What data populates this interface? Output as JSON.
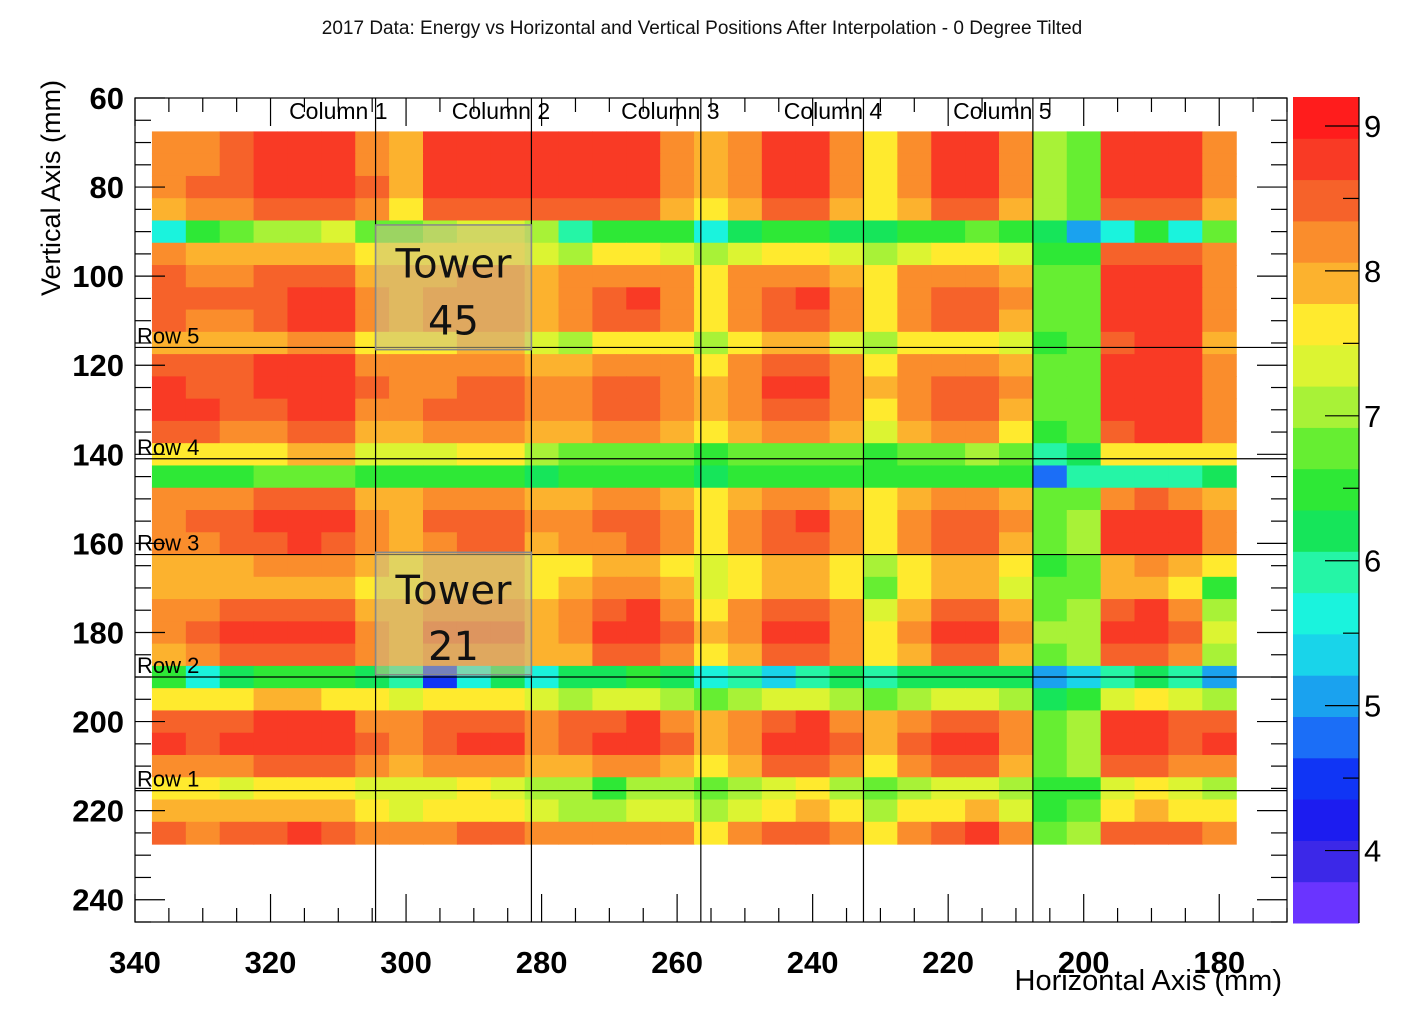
{
  "chart_data": {
    "type": "heatmap",
    "title": "2017 Data: Energy vs Horizontal and Vertical Positions After Interpolation - 0 Degree Tilted",
    "xlabel": "Horizontal Axis (mm)",
    "ylabel": "Vertical Axis (mm)",
    "xlim": [
      340,
      170
    ],
    "ylim": [
      60,
      245
    ],
    "zlim": [
      3.5,
      9.2
    ],
    "x_reversed": true,
    "y_reversed": true,
    "x_ticks": [
      340,
      320,
      300,
      280,
      260,
      240,
      220,
      200,
      180
    ],
    "y_ticks": [
      60,
      80,
      100,
      120,
      140,
      160,
      180,
      200,
      220,
      240
    ],
    "z_ticks": [
      4,
      5,
      6,
      7,
      8,
      9
    ],
    "grid": false,
    "colorbar": "right",
    "palette": [
      "#6a34ff",
      "#3c28e8",
      "#1c1cf0",
      "#1035f5",
      "#1b6ef7",
      "#1aa2ef",
      "#19d4ea",
      "#1af3dd",
      "#25f5a6",
      "#16e55a",
      "#2ee836",
      "#66ee32",
      "#a8f237",
      "#dcf432",
      "#ffea2e",
      "#fcb22e",
      "#fa8d2c",
      "#f6622a",
      "#f93a25",
      "#ff1c1c"
    ],
    "x_bins": [
      335,
      330,
      325,
      320,
      315,
      310,
      305,
      300,
      295,
      290,
      285,
      280,
      275,
      270,
      265,
      260,
      255,
      250,
      245,
      240,
      235,
      230,
      225,
      220,
      215,
      210,
      205,
      200,
      195,
      190,
      185,
      180
    ],
    "y_bins": [
      70,
      75,
      80,
      85,
      90,
      95,
      100,
      105,
      110,
      115,
      120,
      125,
      130,
      135,
      140,
      145,
      150,
      155,
      160,
      165,
      170,
      175,
      180,
      185,
      190,
      195,
      200,
      205,
      210,
      215,
      220,
      225
    ],
    "energy": [
      [
        8.1,
        8.3,
        8.5,
        8.9,
        8.9,
        8.9,
        8.3,
        7.8,
        8.8,
        8.9,
        8.9,
        8.8,
        8.9,
        8.9,
        8.8,
        8.2,
        7.8,
        8.3,
        8.9,
        8.8,
        8.3,
        7.7,
        8.3,
        8.8,
        8.8,
        8.3,
        7.2,
        6.8,
        8.8,
        8.9,
        8.9,
        8.3
      ],
      [
        8.1,
        8.3,
        8.6,
        8.9,
        8.9,
        8.9,
        8.3,
        7.8,
        8.8,
        8.9,
        8.9,
        8.8,
        8.9,
        8.9,
        8.8,
        8.2,
        7.8,
        8.3,
        8.9,
        8.8,
        8.3,
        7.7,
        8.3,
        8.8,
        8.8,
        8.3,
        7.2,
        6.8,
        8.8,
        8.9,
        8.9,
        8.3
      ],
      [
        8.2,
        8.4,
        8.6,
        8.9,
        8.9,
        8.9,
        8.4,
        7.8,
        8.8,
        8.9,
        8.9,
        8.8,
        8.9,
        8.9,
        8.8,
        8.3,
        7.8,
        8.3,
        8.9,
        8.8,
        8.3,
        7.7,
        8.3,
        8.8,
        8.8,
        8.3,
        7.2,
        6.9,
        8.8,
        8.9,
        8.9,
        8.3
      ],
      [
        8.0,
        8.2,
        8.3,
        8.5,
        8.5,
        8.6,
        8.1,
        7.6,
        8.5,
        8.6,
        8.6,
        8.5,
        8.5,
        8.5,
        8.5,
        8.0,
        7.5,
        8.0,
        8.5,
        8.5,
        8.0,
        7.5,
        8.0,
        8.5,
        8.5,
        8.0,
        7.0,
        6.7,
        8.5,
        8.6,
        8.6,
        8.0
      ],
      [
        5.5,
        6.4,
        6.9,
        7.1,
        7.2,
        7.3,
        6.9,
        6.7,
        7.2,
        7.3,
        7.3,
        7.0,
        5.9,
        6.5,
        6.6,
        6.4,
        5.6,
        6.1,
        6.5,
        6.5,
        6.3,
        6.3,
        6.5,
        6.6,
        6.8,
        6.6,
        6.2,
        5.0,
        5.7,
        6.5,
        5.6,
        6.9
      ],
      [
        8.1,
        8.0,
        7.9,
        7.9,
        8.0,
        8.0,
        7.6,
        7.5,
        7.6,
        7.6,
        7.7,
        7.4,
        7.2,
        7.5,
        7.6,
        7.4,
        7.1,
        7.4,
        7.6,
        7.6,
        7.3,
        7.1,
        7.4,
        7.6,
        7.6,
        7.3,
        6.5,
        6.6,
        8.5,
        8.6,
        8.6,
        8.2
      ],
      [
        8.4,
        8.3,
        8.3,
        8.4,
        8.5,
        8.5,
        8.0,
        7.9,
        8.0,
        8.1,
        8.1,
        7.8,
        8.1,
        8.3,
        8.3,
        8.1,
        7.6,
        8.1,
        8.3,
        8.3,
        8.0,
        7.6,
        8.1,
        8.3,
        8.3,
        8.0,
        6.8,
        6.9,
        8.8,
        8.9,
        8.9,
        8.3
      ],
      [
        8.5,
        8.4,
        8.4,
        8.6,
        8.8,
        8.8,
        8.2,
        7.9,
        8.1,
        8.2,
        8.2,
        7.9,
        8.2,
        8.6,
        8.7,
        8.3,
        7.7,
        8.2,
        8.6,
        8.7,
        8.2,
        7.7,
        8.2,
        8.5,
        8.6,
        8.1,
        6.8,
        6.9,
        8.9,
        8.9,
        8.9,
        8.3
      ],
      [
        8.4,
        8.3,
        8.3,
        8.6,
        8.9,
        8.9,
        8.2,
        7.9,
        8.1,
        8.2,
        8.2,
        7.9,
        8.1,
        8.4,
        8.4,
        8.2,
        7.6,
        8.1,
        8.4,
        8.5,
        8.1,
        7.6,
        8.1,
        8.4,
        8.5,
        8.0,
        6.7,
        6.8,
        8.9,
        8.9,
        8.9,
        8.3
      ],
      [
        7.9,
        7.8,
        7.8,
        8.0,
        8.1,
        8.1,
        7.7,
        7.5,
        7.7,
        7.8,
        7.8,
        7.4,
        7.2,
        7.6,
        7.7,
        7.5,
        7.1,
        7.5,
        7.8,
        7.8,
        7.4,
        7.0,
        7.5,
        7.7,
        7.7,
        7.3,
        6.6,
        6.7,
        8.6,
        8.7,
        8.7,
        8.0
      ],
      [
        8.6,
        8.5,
        8.5,
        8.7,
        8.8,
        8.8,
        8.3,
        8.1,
        8.2,
        8.3,
        8.3,
        8.0,
        7.9,
        8.2,
        8.3,
        8.1,
        7.6,
        8.1,
        8.4,
        8.4,
        8.1,
        7.7,
        8.2,
        8.3,
        8.3,
        8.0,
        6.8,
        6.9,
        8.9,
        8.9,
        8.9,
        8.3
      ],
      [
        8.8,
        8.6,
        8.6,
        8.8,
        8.9,
        8.9,
        8.4,
        8.1,
        8.3,
        8.5,
        8.4,
        8.1,
        8.1,
        8.4,
        8.5,
        8.2,
        7.8,
        8.2,
        8.7,
        8.8,
        8.3,
        7.8,
        8.2,
        8.6,
        8.6,
        8.1,
        6.8,
        6.9,
        8.9,
        8.9,
        8.9,
        8.3
      ],
      [
        8.9,
        8.8,
        8.4,
        8.6,
        8.9,
        8.9,
        8.2,
        8.1,
        8.4,
        8.6,
        8.5,
        8.1,
        8.1,
        8.5,
        8.6,
        8.2,
        7.8,
        8.2,
        8.4,
        8.5,
        8.1,
        7.7,
        8.2,
        8.5,
        8.5,
        8.0,
        6.8,
        6.9,
        8.9,
        8.9,
        8.9,
        8.3
      ],
      [
        8.6,
        8.5,
        8.2,
        8.3,
        8.5,
        8.5,
        8.0,
        7.9,
        8.1,
        8.2,
        8.2,
        7.8,
        7.9,
        8.1,
        8.1,
        7.9,
        7.5,
        7.9,
        8.1,
        8.1,
        7.8,
        7.4,
        7.9,
        8.1,
        8.1,
        7.7,
        6.6,
        6.7,
        8.6,
        8.7,
        8.7,
        8.2
      ],
      [
        7.6,
        7.6,
        7.7,
        7.7,
        7.8,
        7.8,
        7.4,
        7.3,
        7.4,
        7.5,
        7.5,
        7.1,
        6.9,
        6.8,
        6.8,
        6.7,
        6.5,
        6.7,
        6.8,
        6.8,
        6.7,
        6.6,
        6.8,
        6.9,
        7.0,
        6.7,
        5.9,
        6.1,
        7.6,
        7.7,
        7.7,
        7.5
      ],
      [
        6.6,
        6.6,
        6.6,
        6.7,
        6.7,
        6.7,
        6.5,
        6.4,
        6.5,
        6.6,
        6.5,
        6.1,
        6.4,
        6.4,
        6.5,
        6.4,
        6.3,
        6.4,
        6.5,
        6.5,
        6.4,
        6.4,
        6.5,
        6.5,
        6.6,
        6.4,
        4.7,
        5.8,
        5.9,
        6.0,
        6.0,
        6.3
      ],
      [
        8.1,
        8.2,
        8.3,
        8.5,
        8.6,
        8.5,
        8.0,
        7.8,
        8.1,
        8.2,
        8.2,
        7.8,
        7.9,
        8.1,
        8.2,
        7.9,
        7.5,
        7.9,
        8.1,
        8.2,
        7.9,
        7.5,
        7.9,
        8.1,
        8.1,
        7.8,
        6.7,
        6.9,
        8.3,
        8.4,
        8.3,
        8.0
      ],
      [
        8.3,
        8.4,
        8.5,
        8.8,
        8.9,
        8.8,
        8.2,
        7.9,
        8.4,
        8.6,
        8.6,
        8.1,
        8.2,
        8.4,
        8.6,
        8.2,
        7.7,
        8.2,
        8.6,
        8.7,
        8.2,
        7.7,
        8.2,
        8.5,
        8.6,
        8.1,
        6.8,
        7.0,
        8.8,
        8.9,
        8.8,
        8.2
      ],
      [
        8.2,
        8.3,
        8.4,
        8.6,
        8.7,
        8.6,
        8.1,
        7.9,
        8.3,
        8.5,
        8.5,
        8.0,
        8.1,
        8.3,
        8.4,
        8.1,
        7.6,
        8.1,
        8.5,
        8.6,
        8.1,
        7.6,
        8.1,
        8.4,
        8.5,
        8.0,
        6.7,
        7.0,
        8.7,
        8.8,
        8.7,
        8.1
      ],
      [
        7.9,
        7.9,
        8.0,
        8.1,
        8.2,
        8.1,
        7.8,
        7.6,
        7.9,
        8.0,
        8.0,
        7.6,
        7.6,
        7.8,
        7.9,
        7.6,
        7.3,
        7.6,
        7.9,
        7.9,
        7.6,
        7.2,
        7.6,
        7.8,
        7.8,
        7.5,
        6.6,
        6.8,
        8.0,
        8.1,
        8.0,
        7.7
      ],
      [
        7.8,
        7.9,
        7.9,
        8.0,
        8.0,
        7.9,
        7.7,
        7.6,
        7.8,
        7.9,
        7.8,
        7.5,
        7.8,
        8.1,
        8.2,
        7.9,
        7.4,
        7.6,
        7.8,
        7.9,
        7.6,
        6.8,
        7.6,
        7.8,
        7.8,
        7.4,
        6.7,
        6.9,
        7.8,
        7.9,
        7.6,
        6.6
      ],
      [
        8.1,
        8.3,
        8.4,
        8.5,
        8.5,
        8.4,
        8.0,
        7.9,
        8.2,
        8.3,
        8.2,
        7.9,
        8.2,
        8.6,
        8.7,
        8.3,
        7.7,
        8.1,
        8.4,
        8.5,
        8.1,
        7.4,
        8.0,
        8.4,
        8.5,
        8.0,
        6.9,
        7.1,
        8.6,
        8.7,
        8.3,
        7.1
      ],
      [
        8.2,
        8.5,
        8.7,
        8.9,
        8.9,
        8.8,
        8.3,
        8.0,
        8.4,
        8.5,
        8.4,
        8.0,
        8.3,
        8.9,
        8.9,
        8.5,
        7.8,
        8.3,
        8.8,
        8.9,
        8.3,
        7.7,
        8.3,
        8.8,
        8.9,
        8.3,
        7.0,
        7.2,
        8.9,
        8.9,
        8.6,
        7.4
      ],
      [
        8.0,
        8.2,
        8.4,
        8.6,
        8.6,
        8.5,
        8.1,
        7.8,
        8.2,
        8.3,
        8.2,
        7.8,
        8.0,
        8.4,
        8.5,
        8.1,
        7.6,
        8.0,
        8.4,
        8.5,
        8.1,
        7.5,
        8.0,
        8.4,
        8.5,
        8.0,
        6.8,
        7.0,
        8.5,
        8.6,
        8.3,
        7.2
      ],
      [
        6.5,
        5.5,
        6.3,
        6.6,
        6.6,
        6.5,
        6.2,
        6.0,
        4.6,
        5.7,
        6.1,
        5.6,
        6.1,
        6.3,
        6.4,
        6.1,
        5.7,
        5.9,
        5.4,
        6.0,
        6.1,
        5.9,
        6.1,
        6.3,
        6.3,
        6.1,
        5.2,
        5.4,
        6.0,
        6.1,
        6.0,
        5.2
      ],
      [
        7.6,
        7.7,
        7.7,
        7.8,
        7.8,
        7.7,
        7.5,
        7.3,
        7.5,
        7.6,
        7.6,
        7.3,
        7.2,
        7.3,
        7.3,
        7.1,
        6.9,
        7.1,
        7.3,
        7.3,
        7.1,
        6.8,
        7.1,
        7.3,
        7.3,
        7.0,
        6.3,
        6.5,
        7.4,
        7.5,
        7.4,
        7.2
      ],
      [
        8.6,
        8.4,
        8.6,
        8.8,
        8.8,
        8.7,
        8.3,
        8.1,
        8.5,
        8.6,
        8.6,
        8.2,
        8.4,
        8.6,
        8.7,
        8.3,
        7.8,
        8.2,
        8.6,
        8.7,
        8.3,
        7.8,
        8.3,
        8.6,
        8.6,
        8.2,
        6.9,
        7.1,
        8.8,
        8.9,
        8.6,
        8.4
      ],
      [
        8.8,
        8.4,
        8.7,
        8.9,
        8.9,
        8.9,
        8.4,
        8.1,
        8.6,
        8.7,
        8.7,
        8.2,
        8.6,
        8.9,
        8.9,
        8.5,
        7.8,
        8.3,
        8.9,
        8.9,
        8.4,
        7.8,
        8.4,
        8.8,
        8.9,
        8.3,
        6.9,
        7.1,
        8.9,
        8.9,
        8.6,
        8.9
      ],
      [
        8.3,
        8.1,
        8.3,
        8.5,
        8.5,
        8.4,
        8.1,
        7.9,
        8.2,
        8.3,
        8.3,
        7.9,
        8.0,
        8.2,
        8.3,
        8.0,
        7.6,
        8.0,
        8.4,
        8.5,
        8.1,
        7.6,
        8.1,
        8.4,
        8.5,
        8.0,
        6.8,
        7.0,
        8.4,
        8.5,
        8.3,
        8.1
      ],
      [
        7.5,
        7.5,
        7.4,
        7.6,
        7.7,
        7.6,
        7.4,
        7.3,
        7.4,
        7.5,
        7.4,
        7.2,
        7.0,
        6.5,
        7.0,
        7.1,
        6.9,
        7.1,
        7.4,
        7.5,
        7.2,
        6.9,
        7.2,
        7.4,
        7.4,
        7.1,
        6.4,
        6.6,
        7.4,
        7.5,
        7.4,
        7.2
      ],
      [
        7.8,
        7.8,
        7.8,
        7.9,
        7.9,
        7.8,
        7.6,
        7.4,
        7.6,
        7.7,
        7.6,
        7.3,
        7.2,
        7.1,
        7.3,
        7.3,
        7.1,
        7.4,
        7.7,
        7.8,
        7.5,
        7.2,
        7.5,
        7.7,
        7.8,
        7.4,
        6.5,
        6.8,
        7.7,
        7.8,
        7.7,
        7.5
      ],
      [
        8.5,
        8.3,
        8.4,
        8.6,
        8.7,
        8.6,
        8.3,
        8.1,
        8.3,
        8.5,
        8.4,
        8.1,
        8.1,
        8.1,
        8.2,
        8.1,
        7.7,
        8.1,
        8.5,
        8.6,
        8.2,
        7.7,
        8.2,
        8.6,
        8.7,
        8.1,
        6.9,
        7.1,
        8.5,
        8.6,
        8.5,
        8.2
      ]
    ],
    "column_lines_x": [
      304.5,
      281.5,
      256.5,
      232.5,
      207.5
    ],
    "column_labels": [
      {
        "text": "Column 1",
        "x": 310
      },
      {
        "text": "Column 2",
        "x": 286
      },
      {
        "text": "Column 3",
        "x": 261
      },
      {
        "text": "Column 4",
        "x": 237
      },
      {
        "text": "Column 5",
        "x": 212
      }
    ],
    "row_lines_y": [
      116,
      141,
      162.5,
      190,
      215.5
    ],
    "row_labels": [
      {
        "text": "Row 5",
        "y": 116
      },
      {
        "text": "Row 4",
        "y": 141
      },
      {
        "text": "Row 3",
        "y": 162.5
      },
      {
        "text": "Row 2",
        "y": 190
      },
      {
        "text": "Row 1",
        "y": 215.5
      }
    ],
    "annotations": [
      {
        "line1": "Tower",
        "line2": "45",
        "x0": 304.5,
        "x1": 281.5,
        "y0": 88.5,
        "y1": 116.5
      },
      {
        "line1": "Tower",
        "line2": "21",
        "x0": 304.5,
        "x1": 281.5,
        "y0": 162,
        "y1": 189.5
      }
    ]
  }
}
